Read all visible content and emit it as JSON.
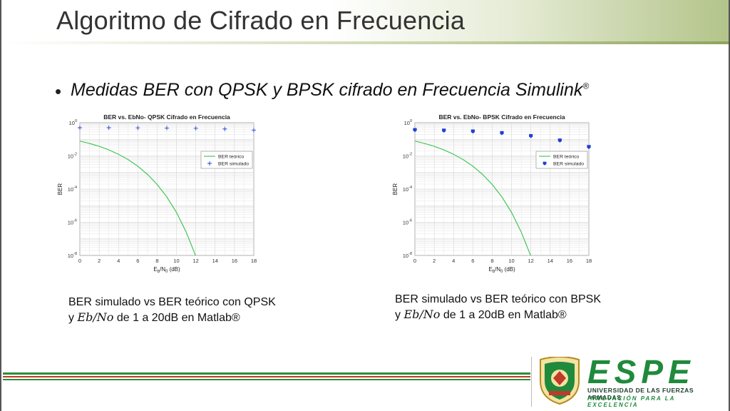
{
  "slide": {
    "title": "Algoritmo de Cifrado en Frecuencia",
    "bullet": "Medidas BER con QPSK y BPSK cifrado en Frecuencia Simulink",
    "bullet_mark": "®"
  },
  "captions": [
    {
      "line1": "BER simulado vs BER teórico con QPSK",
      "prefix": "y ",
      "math": "Eb/No",
      "suffix": " de 1 a 20dB en Matlab®"
    },
    {
      "line1": "BER simulado vs BER teórico con BPSK",
      "prefix": "y ",
      "math": "Eb/No",
      "suffix": " de 1 a 20dB en Matlab®"
    }
  ],
  "logo": {
    "name": "ESPE",
    "subtitle": "UNIVERSIDAD DE LAS FUERZAS ARMADAS",
    "tagline": "INNOVACIÓN PARA LA EXCELENCIA"
  },
  "colors": {
    "theory_line": "#33c24a",
    "sim_marker": "#1f3fd6",
    "brand_green": "#1f8a3c",
    "brand_red": "#c0392b"
  },
  "chart_data": [
    {
      "type": "line",
      "title": "BER vs. EbNo- QPSK Cifrado en Frecuencia",
      "xlabel": "Eb/N0 (dB)",
      "ylabel": "BER",
      "xlim": [
        0,
        18
      ],
      "ylim_exp": [
        -8,
        0
      ],
      "y_scale": "log",
      "xticks": [
        "0",
        "2",
        "4",
        "6",
        "8",
        "10",
        "12",
        "14",
        "16",
        "18"
      ],
      "yticks": [
        "10^0",
        "10^-2",
        "10^-4",
        "10^-6",
        "10^-8"
      ],
      "grid": true,
      "legend": "right",
      "series": [
        {
          "name": "BER teórico",
          "style": "line",
          "x": [
            0,
            1,
            2,
            3,
            4,
            5,
            6,
            7,
            8,
            9,
            10,
            11,
            12
          ],
          "y": [
            0.079,
            0.056,
            0.038,
            0.023,
            0.0125,
            0.006,
            0.0024,
            0.00077,
            0.00019,
            3.4e-05,
            3.9e-06,
            2.6e-07,
            9e-09
          ]
        },
        {
          "name": "BER simulado",
          "style": "plus",
          "x": [
            0,
            3,
            6,
            9,
            12,
            15,
            18
          ],
          "y": [
            0.5,
            0.5,
            0.49,
            0.48,
            0.46,
            0.42,
            0.36
          ]
        }
      ]
    },
    {
      "type": "line",
      "title": "BER vs. EbNo- BPSK Cifrado en Frecuencia",
      "xlabel": "Eb/N0 (dB)",
      "ylabel": "BER",
      "xlim": [
        0,
        18
      ],
      "ylim_exp": [
        -8,
        0
      ],
      "y_scale": "log",
      "xticks": [
        "0",
        "2",
        "4",
        "6",
        "8",
        "10",
        "12",
        "14",
        "16",
        "18"
      ],
      "yticks": [
        "10^0",
        "10^-2",
        "10^-4",
        "10^-6",
        "10^-8"
      ],
      "grid": true,
      "legend": "right",
      "series": [
        {
          "name": "BER teórico",
          "style": "line",
          "x": [
            0,
            1,
            2,
            3,
            4,
            5,
            6,
            7,
            8,
            9,
            10,
            11,
            12
          ],
          "y": [
            0.079,
            0.056,
            0.038,
            0.023,
            0.0125,
            0.006,
            0.0024,
            0.00077,
            0.00019,
            3.4e-05,
            3.9e-06,
            2.6e-07,
            9e-09
          ]
        },
        {
          "name": "BER simulado",
          "style": "dot",
          "x": [
            0,
            3,
            6,
            9,
            12,
            15,
            18
          ],
          "y": [
            0.37,
            0.34,
            0.3,
            0.24,
            0.16,
            0.086,
            0.035
          ]
        }
      ]
    }
  ]
}
